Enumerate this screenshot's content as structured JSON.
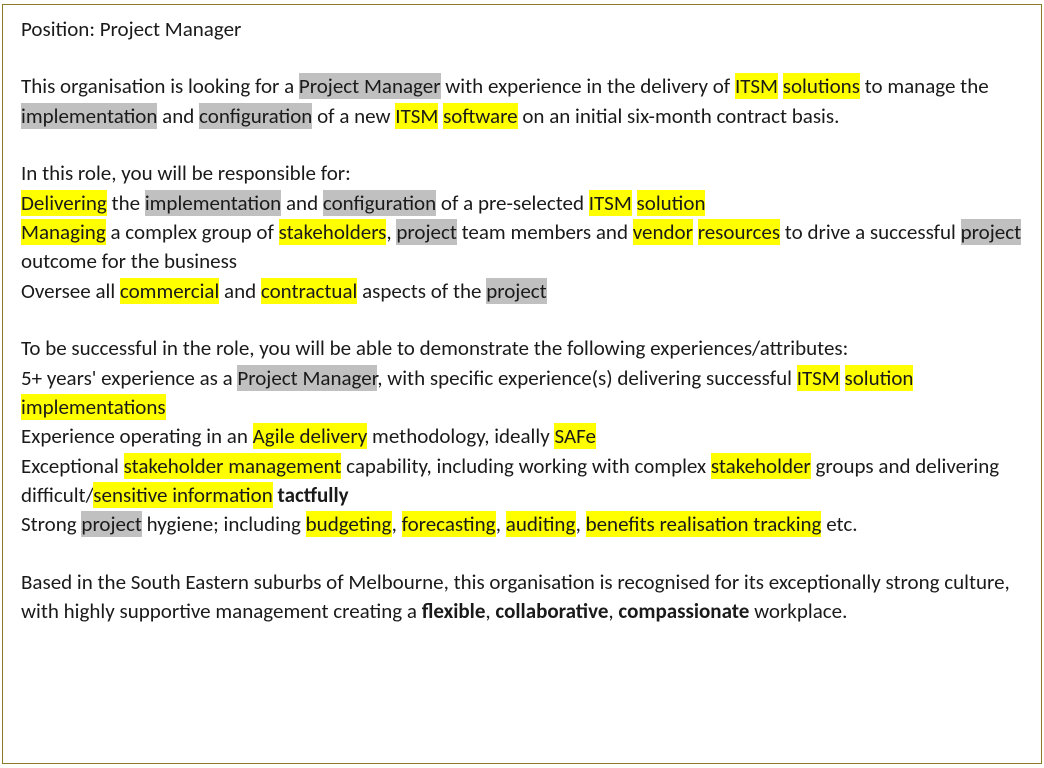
{
  "colors": {
    "border": "#8a7a2a",
    "text": "#1a1a1a",
    "highlight_yellow": "#ffff00",
    "highlight_grey": "#c0c0c0",
    "background": "#ffffff"
  },
  "typography": {
    "font_family": "Calibri",
    "font_size_pt": 16,
    "line_height": 1.4
  },
  "header": {
    "position_line": "Position: Project Manager"
  },
  "intro": {
    "t1": "This organisation is looking for a ",
    "pm": "Project Manager",
    "t2": " with experience in the delivery of ",
    "itsm": "ITSM",
    "sp1": " ",
    "solutions": "solutions",
    "t3": " to manage the ",
    "implementation": "implementation",
    "t4": " and ",
    "configuration": "configuration",
    "t5": " of a new ",
    "itsm2": "ITSM",
    "sp2": " ",
    "software": "software",
    "t6": " on an initial six-month contract basis."
  },
  "resp": {
    "lead": "In this role, you will be responsible for:",
    "l1": {
      "delivering": "Delivering",
      "t1": " the ",
      "implementation": "implementation",
      "t2": " and ",
      "configuration": "configuration",
      "t3": " of a pre-selected ",
      "itsm": "ITSM",
      "sp": " ",
      "solution": "solution"
    },
    "l2": {
      "managing": "Managing",
      "t1": " a complex group of ",
      "stakeholders": "stakeholders",
      "t2": ", ",
      "project": "project",
      "t3": " team members and ",
      "vendor": "vendor",
      "sp": " ",
      "resources": "resources",
      "t4": " to drive a successful ",
      "project2": "project",
      "t5": " outcome for the business"
    },
    "l3": {
      "t1": "Oversee all ",
      "commercial": "commercial",
      "t2": " and ",
      "contractual": "contractual",
      "t3": " aspects of the ",
      "project": "project"
    }
  },
  "attrs": {
    "lead": "To be successful in the role, you will be able to demonstrate the following experiences/attributes:",
    "l1": {
      "t1": "5+ years' experience as a ",
      "pm": "Project Manager",
      "t2": ", with specific experience(s) delivering successful ",
      "itsm": "ITSM",
      "sp": " ",
      "solimpl": "solution implementations"
    },
    "l2": {
      "t1": "Experience operating in an ",
      "agile": "Agile delivery",
      "t2": " methodology, ideally ",
      "safe": "SAFe"
    },
    "l3": {
      "t1": "Exceptional ",
      "sm": "stakeholder management",
      "t2": " capability, including working with complex ",
      "stakeholder": "stakeholder",
      "t3": " groups and delivering difficult/",
      "sensitive": "sensitive information",
      "sp": " ",
      "tactfully": "tactfully"
    },
    "l4": {
      "t1": "Strong ",
      "project": "project",
      "t2": " hygiene; including ",
      "budgeting": "budgeting",
      "c1": ", ",
      "forecasting": "forecasting",
      "c2": ", ",
      "auditing": "auditing",
      "c3": ", ",
      "brt": "benefits realisation tracking",
      "t3": " etc."
    }
  },
  "footer": {
    "t1": "Based in the South Eastern suburbs of Melbourne, this organisation is recognised for its exceptionally strong culture, with highly supportive management creating a ",
    "flexible": "flexible",
    "c1": ", ",
    "collaborative": "collaborative",
    "c2": ", ",
    "compassionate": "compassionate",
    "t2": " workplace."
  }
}
